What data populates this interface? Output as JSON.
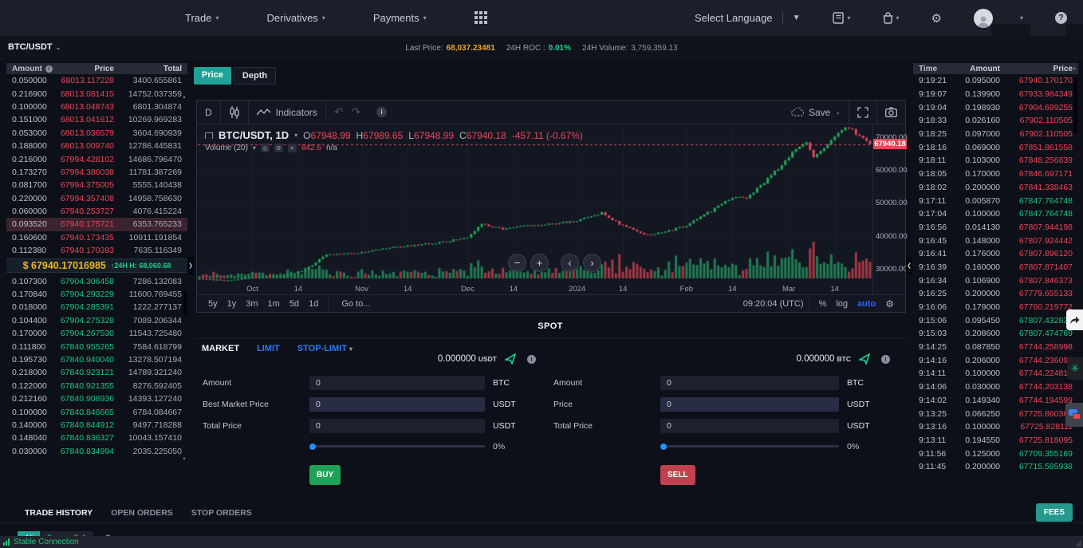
{
  "navbar": {
    "items": [
      {
        "label": "Trade"
      },
      {
        "label": "Derivatives"
      },
      {
        "label": "Payments"
      }
    ],
    "language_label": "Select Language",
    "icons": {
      "apps": "apps-grid",
      "orders": "orders-book",
      "assets": "assets-bag",
      "settings": "gear",
      "avatar": "user-avatar",
      "help": "?"
    }
  },
  "ticker_bar": {
    "pair": "BTC/USDT",
    "last_price_label": "Last Price:",
    "last_price": "68,037.23481",
    "roc_label": "24H ROC :",
    "roc": "0.01%",
    "volume_label": "24H Volume:",
    "volume": "3,759,359.13"
  },
  "order_book": {
    "headers": [
      "Amount",
      "Price",
      "Total"
    ],
    "asks": [
      [
        "0.050000",
        "68013.117228",
        "3400.655861"
      ],
      [
        "0.216900",
        "68013.081415",
        "14752.037359"
      ],
      [
        "0.100000",
        "68013.048743",
        "6801.304874"
      ],
      [
        "0.151000",
        "68013.041612",
        "10269.969283"
      ],
      [
        "0.053000",
        "68013.036579",
        "3604.690939"
      ],
      [
        "0.188000",
        "68013.009740",
        "12786.445831"
      ],
      [
        "0.216000",
        "67994.428102",
        "14686.796470"
      ],
      [
        "0.173270",
        "67994.386038",
        "11781.387269"
      ],
      [
        "0.081700",
        "67994.375005",
        "5555.140438"
      ],
      [
        "0.220000",
        "67994.357408",
        "14958.758630"
      ],
      [
        "0.060000",
        "67940.253727",
        "4076.415224"
      ],
      [
        "0.093520",
        "67940.175721",
        "6353.765233"
      ],
      [
        "0.160600",
        "67940.173435",
        "10911.191854"
      ],
      [
        "0.112380",
        "67940.170393",
        "7635.116349"
      ]
    ],
    "highlight_ask_index": 11,
    "current_price": "$ 67940.17016985",
    "high_arrow": "↑",
    "high_label": "24H H: 68,060.68",
    "bids": [
      [
        "0.107300",
        "67904.306458",
        "7286.132083"
      ],
      [
        "0.170840",
        "67904.293229",
        "11600.769455"
      ],
      [
        "0.018000",
        "67904.285391",
        "1222.277137"
      ],
      [
        "0.104400",
        "67904.275328",
        "7089.206344"
      ],
      [
        "0.170000",
        "67904.267530",
        "11543.725480"
      ],
      [
        "0.111800",
        "67840.955265",
        "7584.618799"
      ],
      [
        "0.195730",
        "67840.940040",
        "13278.507194"
      ],
      [
        "0.218000",
        "67840.923121",
        "14789.321240"
      ],
      [
        "0.122000",
        "67840.921355",
        "8276.592405"
      ],
      [
        "0.212160",
        "67840.908936",
        "14393.127240"
      ],
      [
        "0.100000",
        "67840.846665",
        "6784.084667"
      ],
      [
        "0.140000",
        "67840.844912",
        "9497.718288"
      ],
      [
        "0.148040",
        "67840.836327",
        "10043.157410"
      ],
      [
        "0.030000",
        "67840.834994",
        "2035.225050"
      ]
    ]
  },
  "chart_panel": {
    "tabs": [
      "Price",
      "Depth"
    ],
    "toolbar": {
      "interval": "D",
      "indicators": "Indicators",
      "save": "Save"
    },
    "legend": {
      "symbol": "BTC/USDT, 1D",
      "o_key": "O",
      "o": "67948.99",
      "h_key": "H",
      "h": "67989.65",
      "l_key": "L",
      "l": "67948.99",
      "c_key": "C",
      "c": "67940.18",
      "change": "-457.11 (-0.67%)"
    },
    "volume_legend": {
      "label": "Volume (20)",
      "value": "842.6",
      "na": "n/a"
    },
    "price_badge": "67940.18",
    "nav_glyphs": {
      "minus": "−",
      "plus": "+",
      "left": "‹",
      "right": "›"
    },
    "bottom": {
      "ranges": [
        "5y",
        "1y",
        "3m",
        "1m",
        "5d",
        "1d"
      ],
      "goto": "Go to...",
      "clock": "09:20:04 (UTC)",
      "pct": "%",
      "log": "log",
      "auto": "auto"
    }
  },
  "chart_data": {
    "type": "candlestick",
    "symbol": "BTC/USDT",
    "interval": "1D",
    "ylim": [
      25800,
      73900
    ],
    "y_ticks": [
      {
        "label": "70000.00",
        "value": 70000
      },
      {
        "label": "60000.00",
        "value": 60000
      },
      {
        "label": "50000.00",
        "value": 50000
      },
      {
        "label": "40000.00",
        "value": 40000
      },
      {
        "label": "30000.00",
        "value": 30000
      }
    ],
    "x_ticks": [
      [
        "Oct",
        15
      ],
      [
        "14",
        28
      ],
      [
        "Nov",
        46
      ],
      [
        "14",
        59
      ],
      [
        "Dec",
        76
      ],
      [
        "14",
        89
      ],
      [
        "2024",
        107
      ],
      [
        "14",
        120
      ],
      [
        "Feb",
        138
      ],
      [
        "14",
        151
      ],
      [
        "Mar",
        167
      ],
      [
        "14",
        180
      ]
    ],
    "total_days": 190,
    "last_price": 67940.18,
    "price_path_anchors": [
      [
        0,
        26800
      ],
      [
        8,
        26400
      ],
      [
        15,
        27200
      ],
      [
        24,
        27800
      ],
      [
        30,
        29600
      ],
      [
        36,
        34300
      ],
      [
        46,
        34800
      ],
      [
        55,
        36500
      ],
      [
        63,
        37300
      ],
      [
        70,
        38200
      ],
      [
        76,
        39400
      ],
      [
        80,
        43800
      ],
      [
        86,
        41900
      ],
      [
        93,
        43100
      ],
      [
        100,
        43600
      ],
      [
        107,
        44600
      ],
      [
        114,
        46900
      ],
      [
        120,
        43000
      ],
      [
        127,
        40100
      ],
      [
        134,
        41800
      ],
      [
        138,
        43100
      ],
      [
        145,
        47600
      ],
      [
        151,
        51800
      ],
      [
        155,
        51400
      ],
      [
        160,
        56300
      ],
      [
        165,
        61500
      ],
      [
        169,
        66500
      ],
      [
        172,
        68400
      ],
      [
        174,
        63900
      ],
      [
        177,
        66500
      ],
      [
        181,
        71500
      ],
      [
        184,
        73100
      ],
      [
        187,
        70000
      ],
      [
        189,
        68600
      ],
      [
        190,
        67940
      ]
    ],
    "colors": {
      "up": "#1faa5c",
      "down": "#e2465a",
      "grid": "#1c212c",
      "last_price_line": "#e0485a"
    }
  },
  "spot": {
    "title": "SPOT",
    "tabs": [
      "MARKET",
      "LIMIT",
      "STOP-LIMIT"
    ],
    "buy": {
      "balance": "0.000000",
      "balance_unit": "USDT",
      "fields": [
        {
          "label": "Amount",
          "value": "0",
          "unit": "BTC"
        },
        {
          "label": "Best Market Price",
          "value": "0",
          "unit": "USDT"
        },
        {
          "label": "Total Price",
          "value": "0",
          "unit": "USDT"
        }
      ],
      "percent": "0%",
      "button": "BUY"
    },
    "sell": {
      "balance": "0.000000",
      "balance_unit": "BTC",
      "fields": [
        {
          "label": "Amount",
          "value": "0",
          "unit": "BTC"
        },
        {
          "label": "Price",
          "value": "0",
          "unit": "USDT"
        },
        {
          "label": "Total Price",
          "value": "0",
          "unit": "USDT"
        }
      ],
      "percent": "0%",
      "button": "SELL"
    }
  },
  "trades": {
    "headers": [
      "Time",
      "Amount",
      "Price"
    ],
    "rows": [
      [
        "9:19:21",
        "0.095000",
        "67940.170170",
        "down"
      ],
      [
        "9:19:07",
        "0.139900",
        "67933.984349",
        "down"
      ],
      [
        "9:19:04",
        "0.198930",
        "67904.699255",
        "down"
      ],
      [
        "9:18:33",
        "0.026160",
        "67902.110505",
        "down"
      ],
      [
        "9:18:25",
        "0.097000",
        "67902.110505",
        "down"
      ],
      [
        "9:18:16",
        "0.069000",
        "67851.861558",
        "down"
      ],
      [
        "9:18:11",
        "0.103000",
        "67848.256839",
        "down"
      ],
      [
        "9:18:05",
        "0.170000",
        "67846.697171",
        "down"
      ],
      [
        "9:18:02",
        "0.200000",
        "67841.338463",
        "down"
      ],
      [
        "9:17:11",
        "0.005870",
        "67847.764748",
        "up"
      ],
      [
        "9:17:04",
        "0.100000",
        "67847.764748",
        "up"
      ],
      [
        "9:16:56",
        "0.014130",
        "67807.944198",
        "down"
      ],
      [
        "9:16:45",
        "0.148000",
        "67807.924442",
        "down"
      ],
      [
        "9:16:41",
        "0.176000",
        "67807.896120",
        "down"
      ],
      [
        "9:16:39",
        "0.160000",
        "67807.871407",
        "down"
      ],
      [
        "9:16:34",
        "0.106900",
        "67807.846373",
        "down"
      ],
      [
        "9:16:25",
        "0.200000",
        "67779.655133",
        "down"
      ],
      [
        "9:16:06",
        "0.179000",
        "67760.219772",
        "down"
      ],
      [
        "9:15:06",
        "0.095450",
        "67807.432836",
        "up"
      ],
      [
        "9:15:03",
        "0.208600",
        "67807.474769",
        "up"
      ],
      [
        "9:14:25",
        "0.087850",
        "67744.258998",
        "down"
      ],
      [
        "9:14:16",
        "0.206000",
        "67744.236098",
        "down"
      ],
      [
        "9:14:11",
        "0.100000",
        "67744.224817",
        "down"
      ],
      [
        "9:14:06",
        "0.030000",
        "67744.203138",
        "down"
      ],
      [
        "9:14:02",
        "0.149340",
        "67744.194599",
        "down"
      ],
      [
        "9:13:25",
        "0.066250",
        "67725.860361",
        "down"
      ],
      [
        "9:13:16",
        "0.100000",
        "67725.828111",
        "down"
      ],
      [
        "9:13:11",
        "0.194550",
        "67725.818095",
        "down"
      ],
      [
        "9:11:56",
        "0.125000",
        "67709.355169",
        "up"
      ],
      [
        "9:11:45",
        "0.200000",
        "67715.595938",
        "up"
      ]
    ]
  },
  "bottom_tabs": {
    "items": [
      "TRADE HISTORY",
      "OPEN ORDERS",
      "STOP ORDERS"
    ],
    "fees": "FEES"
  },
  "filter_chips": {
    "all": "All",
    "buy": "Buy",
    "sell": "Sell"
  },
  "status_bar": {
    "connection": "Stable Connection"
  },
  "colors": {
    "up": "#17c784",
    "down": "#f04458",
    "accent_teal": "#1fa396",
    "gold": "#f2b31c",
    "link_blue": "#2d7bf7"
  }
}
